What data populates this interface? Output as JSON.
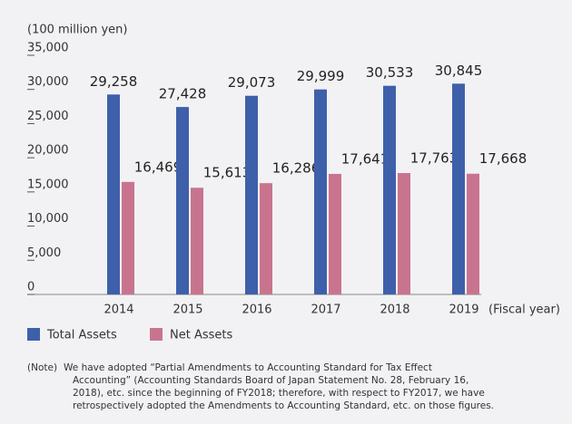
{
  "chart_data": {
    "type": "bar",
    "unit_label": "(100 million yen)",
    "x_axis_label": "(Fiscal year)",
    "categories": [
      "2014",
      "2015",
      "2016",
      "2017",
      "2018",
      "2019"
    ],
    "series": [
      {
        "name": "Total Assets",
        "color": "#3e60aa",
        "values": [
          29258,
          27428,
          29073,
          29999,
          30533,
          30845
        ],
        "value_labels": [
          "29,258",
          "27,428",
          "29,073",
          "29,999",
          "30,533",
          "30,845"
        ]
      },
      {
        "name": "Net Assets",
        "color": "#c9748f",
        "values": [
          16469,
          15613,
          16286,
          17641,
          17763,
          17668
        ],
        "value_labels": [
          "16,469",
          "15,613",
          "16,286",
          "17,641",
          "17,763",
          "17,668"
        ]
      }
    ],
    "ylim": [
      0,
      35000
    ],
    "yticks": [
      0,
      {
        "value": 5000,
        "label": "5,000"
      },
      {
        "value": 10000,
        "label": "10,000"
      },
      {
        "value": 15000,
        "label": "15,000"
      },
      {
        "value": 20000,
        "label": "20,000"
      },
      {
        "value": 25000,
        "label": "25,000"
      },
      {
        "value": 30000,
        "label": "30,000"
      },
      {
        "value": 35000,
        "label": "35,000"
      }
    ],
    "grid": false,
    "legend": "bottom-left",
    "note": {
      "label": "(Note)",
      "lines": [
        "We have adopted “Partial Amendments to Accounting Standard for Tax Effect",
        "Accounting” (Accounting Standards Board of Japan Statement No. 28, February 16,",
        "2018), etc. since the beginning of FY2018; therefore, with respect to FY2017, we have",
        "retrospectively adopted the Amendments to Accounting Standard, etc. on those figures."
      ]
    }
  }
}
